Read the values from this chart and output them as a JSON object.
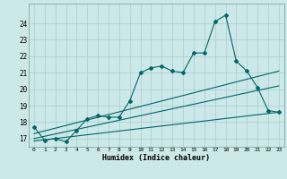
{
  "xlabel": "Humidex (Indice chaleur)",
  "x_ticks": [
    0,
    1,
    2,
    3,
    4,
    5,
    6,
    7,
    8,
    9,
    10,
    11,
    12,
    13,
    14,
    15,
    16,
    17,
    18,
    19,
    20,
    21,
    22,
    23
  ],
  "ylim": [
    16.5,
    25.2
  ],
  "xlim": [
    -0.5,
    23.5
  ],
  "yticks": [
    17,
    18,
    19,
    20,
    21,
    22,
    23,
    24
  ],
  "bg_color": "#cce8e8",
  "grid_color": "#aacece",
  "line_color": "#006666",
  "line1_x": [
    0,
    1,
    2,
    3,
    4,
    5,
    6,
    7,
    8,
    9,
    10,
    11,
    12,
    13,
    14,
    15,
    16,
    17,
    18,
    19,
    20,
    21,
    22,
    23
  ],
  "line1_y": [
    17.7,
    16.9,
    17.0,
    16.8,
    17.5,
    18.2,
    18.4,
    18.3,
    18.3,
    19.3,
    21.0,
    21.3,
    21.4,
    21.1,
    21.0,
    22.2,
    22.2,
    24.1,
    24.5,
    21.7,
    21.1,
    20.1,
    18.7,
    18.6
  ],
  "trend1_x": [
    0,
    23
  ],
  "trend1_y": [
    17.3,
    21.1
  ],
  "trend2_x": [
    0,
    23
  ],
  "trend2_y": [
    17.0,
    20.2
  ],
  "trend3_x": [
    0,
    23
  ],
  "trend3_y": [
    16.85,
    18.6
  ]
}
